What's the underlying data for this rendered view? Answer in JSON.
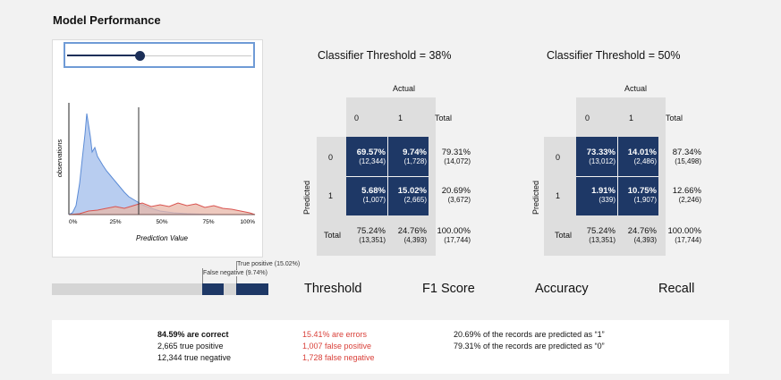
{
  "page_title": "Model Performance",
  "slider": {
    "value_percent": 38
  },
  "distribution": {
    "x_ticks": [
      "0%",
      "25%",
      "50%",
      "75%",
      "100%"
    ],
    "x_label": "Prediction Value",
    "y_label": "observations",
    "threshold_percent": 38,
    "colors": {
      "positive": "#5b8bd6",
      "negative": "#d9534f"
    }
  },
  "matrix1": {
    "title": "Classifier Threshold = 38%",
    "actual_label": "Actual",
    "predicted_label": "Predicted",
    "col_headers": [
      "0",
      "1",
      "Total"
    ],
    "row_headers": [
      "0",
      "1",
      "Total"
    ],
    "cells": [
      [
        {
          "pct": "69.57%",
          "count": "(12,344)"
        },
        {
          "pct": "9.74%",
          "count": "(1,728)"
        },
        {
          "pct": "79.31%",
          "count": "(14,072)"
        }
      ],
      [
        {
          "pct": "5.68%",
          "count": "(1,007)"
        },
        {
          "pct": "15.02%",
          "count": "(2,665)"
        },
        {
          "pct": "20.69%",
          "count": "(3,672)"
        }
      ],
      [
        {
          "pct": "75.24%",
          "count": "(13,351)"
        },
        {
          "pct": "24.76%",
          "count": "(4,393)"
        },
        {
          "pct": "100.00%",
          "count": "(17,744)"
        }
      ]
    ]
  },
  "matrix2": {
    "title": "Classifier Threshold = 50%",
    "actual_label": "Actual",
    "predicted_label": "Predicted",
    "col_headers": [
      "0",
      "1",
      "Total"
    ],
    "row_headers": [
      "0",
      "1",
      "Total"
    ],
    "cells": [
      [
        {
          "pct": "73.33%",
          "count": "(13,012)"
        },
        {
          "pct": "14.01%",
          "count": "(2,486)"
        },
        {
          "pct": "87.34%",
          "count": "(15,498)"
        }
      ],
      [
        {
          "pct": "1.91%",
          "count": "(339)"
        },
        {
          "pct": "10.75%",
          "count": "(1,907)"
        },
        {
          "pct": "12.66%",
          "count": "(2,246)"
        }
      ],
      [
        {
          "pct": "75.24%",
          "count": "(13,351)"
        },
        {
          "pct": "24.76%",
          "count": "(4,393)"
        },
        {
          "pct": "100.00%",
          "count": "(17,744)"
        }
      ]
    ]
  },
  "bar": {
    "false_negative_label": "False negative (9.74%)",
    "true_positive_label": "True positive (15.02%)"
  },
  "metrics": [
    "Threshold",
    "F1 Score",
    "Accuracy",
    "Recall"
  ],
  "summary": {
    "col1": [
      "84.59% are correct",
      "2,665 true positive",
      "12,344 true negative"
    ],
    "col2": [
      "15.41% are errors",
      "1,007 false positive",
      "1,728 false negative"
    ],
    "col3": [
      "20.69% of the records are predicted as “1”",
      "79.31% of the records are predicted as “0”"
    ]
  }
}
